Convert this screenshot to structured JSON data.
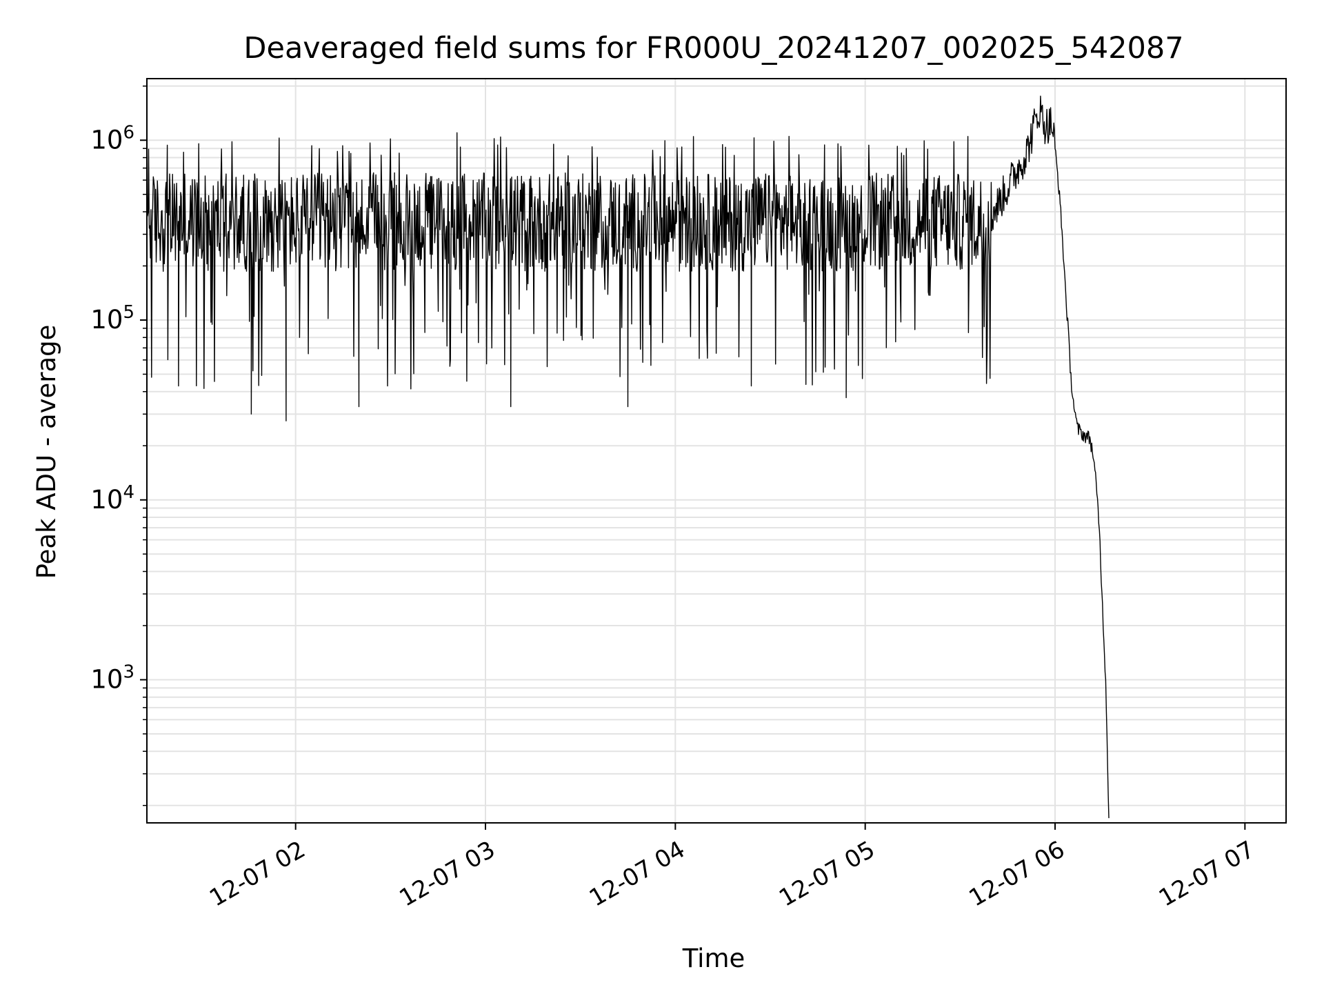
{
  "chart_data": {
    "type": "line",
    "title": "Deaveraged field sums for FR000U_20241207_002025_542087",
    "xlabel": "Time",
    "ylabel": "Peak ADU - average",
    "yscale": "log",
    "ylim": [
      160,
      2200000
    ],
    "xlim": [
      "2024-12-07 01:13",
      "2024-12-07 07:13"
    ],
    "grid": true,
    "line_color": "#000000",
    "x_ticks": [
      {
        "value": "2024-12-07 02:00",
        "label": "12-07 02"
      },
      {
        "value": "2024-12-07 03:00",
        "label": "12-07 03"
      },
      {
        "value": "2024-12-07 04:00",
        "label": "12-07 04"
      },
      {
        "value": "2024-12-07 05:00",
        "label": "12-07 05"
      },
      {
        "value": "2024-12-07 06:00",
        "label": "12-07 06"
      },
      {
        "value": "2024-12-07 07:00",
        "label": "12-07 07"
      }
    ],
    "y_ticks": [
      {
        "value": 1000,
        "base": "10",
        "exp": "3"
      },
      {
        "value": 10000,
        "base": "10",
        "exp": "4"
      },
      {
        "value": 100000,
        "base": "10",
        "exp": "5"
      },
      {
        "value": 1000000,
        "base": "10",
        "exp": "6"
      }
    ],
    "series": [
      {
        "x_start": "2024-12-07 01:13",
        "x_end": "2024-12-07 06:17",
        "baseline_level": 350000,
        "noise_low": 40000,
        "noise_high": 800000,
        "points": [
          {
            "x": "2024-12-07 01:13",
            "y": 350000
          },
          {
            "x": "2024-12-07 01:23",
            "y": 43000
          },
          {
            "x": "2024-12-07 01:46",
            "y": 30000
          },
          {
            "x": "2024-12-07 01:57",
            "y": 27500
          },
          {
            "x": "2024-12-07 02:20",
            "y": 33000
          },
          {
            "x": "2024-12-07 02:51",
            "y": 1100000
          },
          {
            "x": "2024-12-07 03:08",
            "y": 33000
          },
          {
            "x": "2024-12-07 03:45",
            "y": 33000
          },
          {
            "x": "2024-12-07 04:24",
            "y": 43000
          },
          {
            "x": "2024-12-07 04:54",
            "y": 37000
          },
          {
            "x": "2024-12-07 05:13",
            "y": 900000
          },
          {
            "x": "2024-12-07 05:40",
            "y": 380000
          },
          {
            "x": "2024-12-07 05:51",
            "y": 850000
          },
          {
            "x": "2024-12-07 05:55",
            "y": 1500000
          },
          {
            "x": "2024-12-07 05:57",
            "y": 1200000
          },
          {
            "x": "2024-12-07 05:59",
            "y": 1250000
          },
          {
            "x": "2024-12-07 06:00",
            "y": 900000
          },
          {
            "x": "2024-12-07 06:01",
            "y": 600000
          },
          {
            "x": "2024-12-07 06:02",
            "y": 350000
          },
          {
            "x": "2024-12-07 06:03",
            "y": 180000
          },
          {
            "x": "2024-12-07 06:04",
            "y": 95000
          },
          {
            "x": "2024-12-07 06:05",
            "y": 48000
          },
          {
            "x": "2024-12-07 06:06",
            "y": 33000
          },
          {
            "x": "2024-12-07 06:07",
            "y": 25000
          },
          {
            "x": "2024-12-07 06:09",
            "y": 23000
          },
          {
            "x": "2024-12-07 06:11",
            "y": 22000
          },
          {
            "x": "2024-12-07 06:12",
            "y": 18000
          },
          {
            "x": "2024-12-07 06:13",
            "y": 12000
          },
          {
            "x": "2024-12-07 06:14",
            "y": 7000
          },
          {
            "x": "2024-12-07 06:15",
            "y": 2500
          },
          {
            "x": "2024-12-07 06:16",
            "y": 1000
          },
          {
            "x": "2024-12-07 06:17",
            "y": 170
          }
        ]
      }
    ]
  }
}
